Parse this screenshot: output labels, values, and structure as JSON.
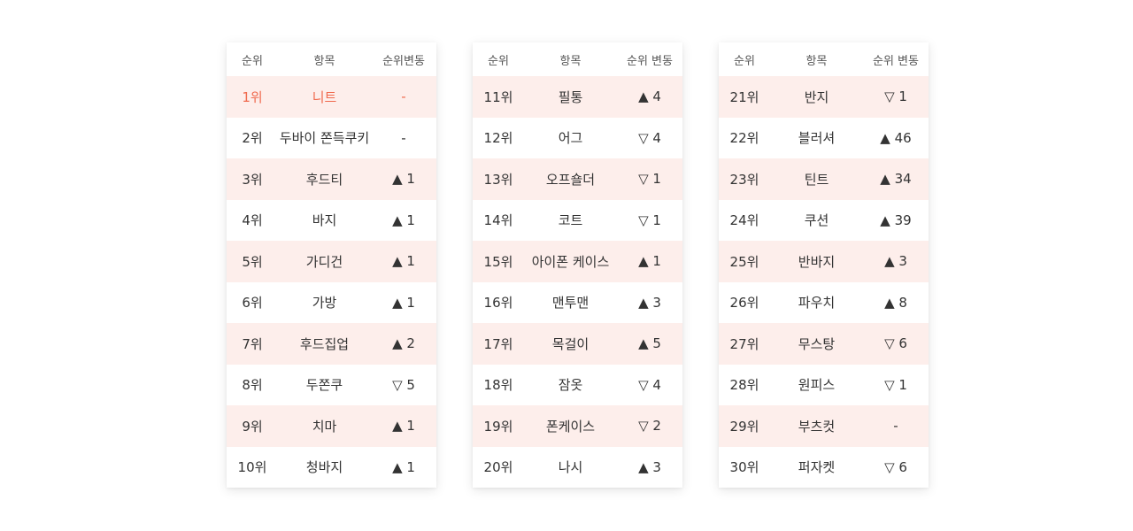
{
  "colors": {
    "highlight_text": "#f06a4e",
    "stripe_background": "#fdeeeb",
    "text": "#333333"
  },
  "panels": [
    {
      "headers": {
        "rank": "순위",
        "item": "항목",
        "change": "순위변동"
      },
      "rows": [
        {
          "rank": "1위",
          "item": "니트",
          "change": "-"
        },
        {
          "rank": "2위",
          "item": "두바이 쫀득쿠키",
          "change": "-"
        },
        {
          "rank": "3위",
          "item": "후드티",
          "change": "▲ 1"
        },
        {
          "rank": "4위",
          "item": "바지",
          "change": "▲ 1"
        },
        {
          "rank": "5위",
          "item": "가디건",
          "change": "▲ 1"
        },
        {
          "rank": "6위",
          "item": "가방",
          "change": "▲ 1"
        },
        {
          "rank": "7위",
          "item": "후드집업",
          "change": "▲ 2"
        },
        {
          "rank": "8위",
          "item": "두쫀쿠",
          "change": "▽ 5"
        },
        {
          "rank": "9위",
          "item": "치마",
          "change": "▲ 1"
        },
        {
          "rank": "10위",
          "item": "청바지",
          "change": "▲ 1"
        }
      ]
    },
    {
      "headers": {
        "rank": "순위",
        "item": "항목",
        "change": "순위 변동"
      },
      "rows": [
        {
          "rank": "11위",
          "item": "필통",
          "change": "▲ 4"
        },
        {
          "rank": "12위",
          "item": "어그",
          "change": "▽ 4"
        },
        {
          "rank": "13위",
          "item": "오프숄더",
          "change": "▽ 1"
        },
        {
          "rank": "14위",
          "item": "코트",
          "change": "▽ 1"
        },
        {
          "rank": "15위",
          "item": "아이폰 케이스",
          "change": "▲ 1"
        },
        {
          "rank": "16위",
          "item": "맨투맨",
          "change": "▲ 3"
        },
        {
          "rank": "17위",
          "item": "목걸이",
          "change": "▲ 5"
        },
        {
          "rank": "18위",
          "item": "잠옷",
          "change": "▽ 4"
        },
        {
          "rank": "19위",
          "item": "폰케이스",
          "change": "▽ 2"
        },
        {
          "rank": "20위",
          "item": "나시",
          "change": "▲ 3"
        }
      ]
    },
    {
      "headers": {
        "rank": "순위",
        "item": "항목",
        "change": "순위 변동"
      },
      "rows": [
        {
          "rank": "21위",
          "item": "반지",
          "change": "▽ 1"
        },
        {
          "rank": "22위",
          "item": "블러셔",
          "change": "▲ 46"
        },
        {
          "rank": "23위",
          "item": "틴트",
          "change": "▲ 34"
        },
        {
          "rank": "24위",
          "item": "쿠션",
          "change": "▲ 39"
        },
        {
          "rank": "25위",
          "item": "반바지",
          "change": "▲ 3"
        },
        {
          "rank": "26위",
          "item": "파우치",
          "change": "▲ 8"
        },
        {
          "rank": "27위",
          "item": "무스탕",
          "change": "▽ 6"
        },
        {
          "rank": "28위",
          "item": "원피스",
          "change": "▽ 1"
        },
        {
          "rank": "29위",
          "item": "부츠컷",
          "change": "-"
        },
        {
          "rank": "30위",
          "item": "퍼자켓",
          "change": "▽ 6"
        }
      ]
    }
  ]
}
